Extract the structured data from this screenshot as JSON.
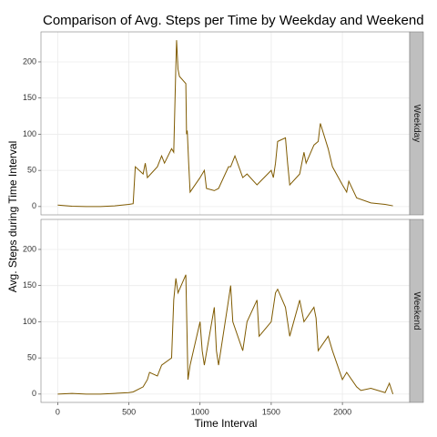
{
  "chart_data": {
    "type": "line",
    "title": "Comparison of Avg. Steps per Time by Weekday and Weekend",
    "x_label": "Time Interval",
    "y_label": "Avg. Steps during Time Interval",
    "color": "#7f5a00",
    "grid": true,
    "xlim": [
      -117.75,
      2472.75
    ],
    "ylim": [
      -11.5,
      241.5
    ],
    "xticks": [
      0,
      500,
      1000,
      1500,
      2000
    ],
    "yticks": [
      0,
      50,
      100,
      150,
      200
    ],
    "facets": [
      {
        "label": "Weekday",
        "x": [
          0,
          100,
          200,
          300,
          400,
          500,
          530,
          545,
          600,
          615,
          630,
          700,
          730,
          750,
          800,
          815,
          830,
          835,
          845,
          855,
          900,
          905,
          910,
          920,
          930,
          1000,
          1030,
          1045,
          1100,
          1130,
          1200,
          1215,
          1245,
          1300,
          1330,
          1400,
          1500,
          1515,
          1530,
          1545,
          1600,
          1615,
          1630,
          1700,
          1730,
          1745,
          1800,
          1830,
          1845,
          1900,
          1930,
          2000,
          2030,
          2045,
          2100,
          2200,
          2300,
          2355
        ],
        "values": [
          2,
          0.5,
          0,
          0,
          1,
          3,
          4,
          55,
          45,
          60,
          40,
          55,
          70,
          60,
          80,
          75,
          195,
          230,
          190,
          180,
          170,
          100,
          105,
          60,
          20,
          40,
          50,
          25,
          22,
          25,
          55,
          55,
          70,
          40,
          45,
          30,
          50,
          40,
          60,
          90,
          95,
          60,
          30,
          45,
          75,
          60,
          85,
          90,
          115,
          80,
          55,
          30,
          20,
          35,
          12,
          5,
          3,
          1
        ]
      },
      {
        "label": "Weekend",
        "x": [
          0,
          100,
          200,
          300,
          400,
          500,
          530,
          600,
          630,
          645,
          700,
          730,
          800,
          815,
          830,
          845,
          900,
          915,
          930,
          1000,
          1015,
          1030,
          1100,
          1115,
          1130,
          1200,
          1215,
          1230,
          1300,
          1330,
          1400,
          1415,
          1500,
          1530,
          1545,
          1600,
          1630,
          1700,
          1730,
          1800,
          1815,
          1830,
          1900,
          1930,
          2000,
          2030,
          2100,
          2130,
          2200,
          2300,
          2330,
          2355
        ],
        "values": [
          0,
          1,
          0,
          0,
          1,
          2,
          3,
          10,
          20,
          30,
          25,
          40,
          50,
          130,
          160,
          140,
          165,
          20,
          40,
          100,
          60,
          40,
          120,
          60,
          40,
          130,
          150,
          100,
          60,
          100,
          130,
          80,
          100,
          140,
          145,
          120,
          80,
          130,
          100,
          120,
          105,
          60,
          80,
          60,
          20,
          30,
          10,
          5,
          8,
          2,
          15,
          0
        ]
      }
    ]
  }
}
